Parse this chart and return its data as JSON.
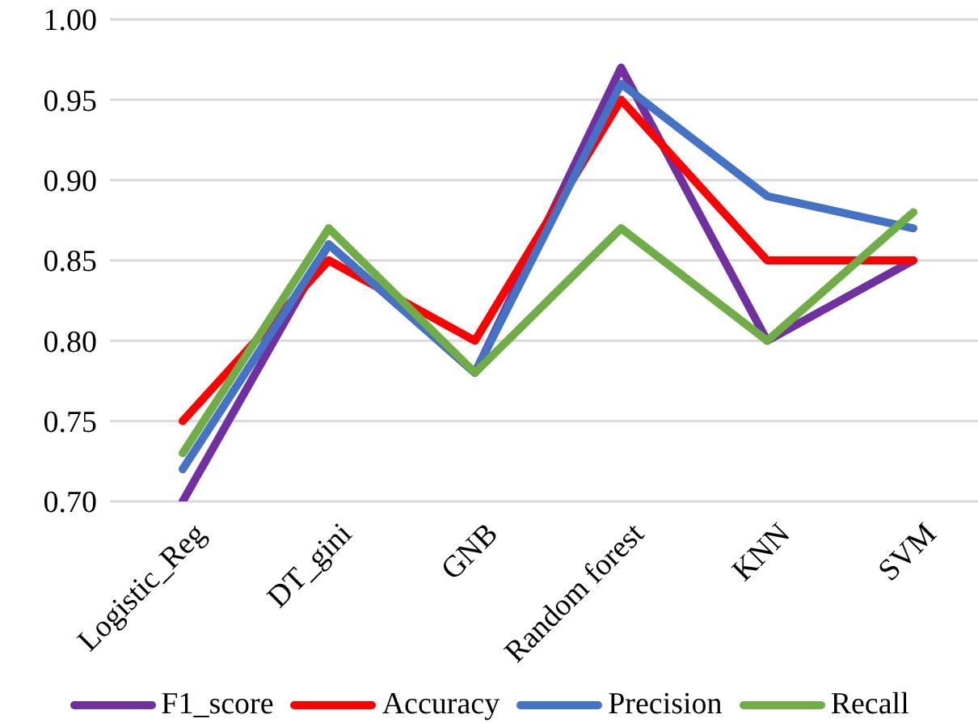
{
  "chart_data": {
    "type": "line",
    "categories": [
      "Logistic_Reg",
      "DT_gini",
      "GNB",
      "Random forest",
      "KNN",
      "SVM"
    ],
    "series": [
      {
        "name": "F1_score",
        "color": "#7030a0",
        "values": [
          0.7,
          0.86,
          0.78,
          0.97,
          0.8,
          0.85
        ]
      },
      {
        "name": "Accuracy",
        "color": "#ff0000",
        "values": [
          0.75,
          0.85,
          0.8,
          0.95,
          0.85,
          0.85
        ]
      },
      {
        "name": "Precision",
        "color": "#4472c4",
        "values": [
          0.72,
          0.86,
          0.78,
          0.96,
          0.89,
          0.87
        ]
      },
      {
        "name": "Recall",
        "color": "#70ad47",
        "values": [
          0.73,
          0.87,
          0.78,
          0.87,
          0.8,
          0.88
        ]
      }
    ],
    "ylim": [
      0.7,
      1.0
    ],
    "yticks": [
      {
        "value": 0.7,
        "label": "0.70"
      },
      {
        "value": 0.75,
        "label": "0.75"
      },
      {
        "value": 0.8,
        "label": "0.80"
      },
      {
        "value": 0.85,
        "label": "0.85"
      },
      {
        "value": 0.9,
        "label": "0.90"
      },
      {
        "value": 0.95,
        "label": "0.95"
      },
      {
        "value": 1.0,
        "label": "1.00"
      }
    ],
    "grid": "y",
    "legend": "bottom",
    "marker": "none",
    "line_style": "solid"
  }
}
